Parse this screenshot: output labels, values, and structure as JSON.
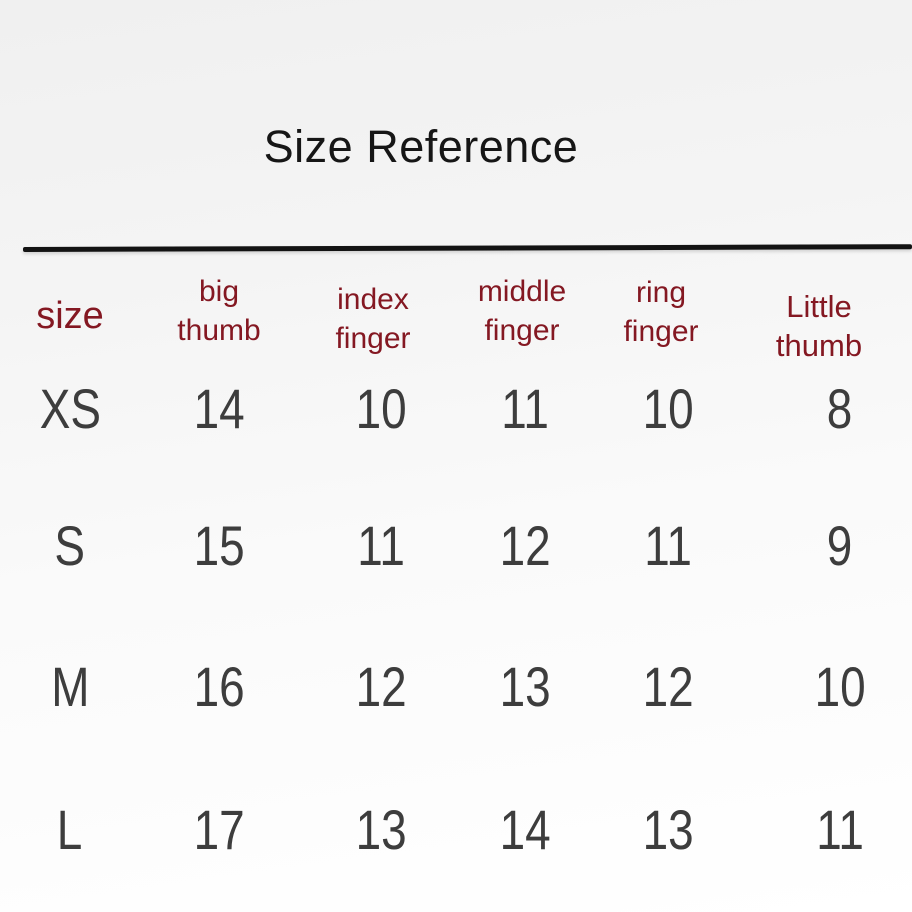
{
  "page": {
    "title": "Size Reference"
  },
  "table": {
    "headers": [
      [
        "size"
      ],
      [
        "big",
        "thumb"
      ],
      [
        "index",
        "finger"
      ],
      [
        "middle",
        "finger"
      ],
      [
        "ring",
        "finger"
      ],
      [
        "Little",
        "thumb"
      ]
    ],
    "rows": [
      {
        "label": "XS",
        "values": [
          "14",
          "10",
          "11",
          "10",
          "8"
        ]
      },
      {
        "label": "S",
        "values": [
          "15",
          "11",
          "12",
          "11",
          "9"
        ]
      },
      {
        "label": "M",
        "values": [
          "16",
          "12",
          "13",
          "12",
          "10"
        ]
      },
      {
        "label": "L",
        "values": [
          "17",
          "13",
          "14",
          "13",
          "11"
        ]
      }
    ]
  },
  "chart_data": {
    "type": "table",
    "title": "Size Reference",
    "columns": [
      "size",
      "big thumb",
      "index finger",
      "middle finger",
      "ring finger",
      "Little thumb"
    ],
    "rows": [
      [
        "XS",
        14,
        10,
        11,
        10,
        8
      ],
      [
        "S",
        15,
        11,
        12,
        11,
        9
      ],
      [
        "M",
        16,
        12,
        13,
        12,
        10
      ],
      [
        "L",
        17,
        13,
        14,
        13,
        11
      ]
    ]
  },
  "colors": {
    "header_text": "#841822",
    "value_text": "#3d3d3d",
    "title_text": "#161616",
    "divider": "#131313",
    "background_top": "#f0f0f0",
    "background_bottom": "#ffffff"
  }
}
